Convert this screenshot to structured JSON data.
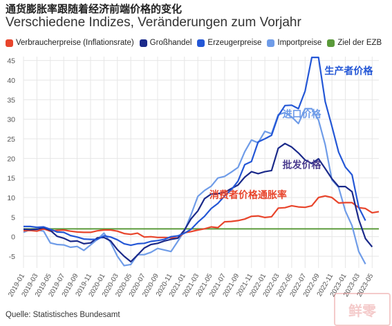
{
  "title": "通货膨胀率跟随着经济前端价格的变化",
  "subtitle": "Verschiedene Indizes, Veränderungen zum Vorjahr",
  "source": "Quelle: Statistisches Bundesamt",
  "watermark": "鲜零",
  "colors": {
    "cpi": "#e8452c",
    "grosshandel": "#1b2a8a",
    "erzeuger": "#2457d6",
    "import": "#6f9ce8",
    "ezb": "#5a9a3a",
    "grid": "#e6e6e6",
    "label_erzeuger": "#2457d6",
    "label_import": "#6f9ce8",
    "label_gross": "#4b3c8f",
    "label_cpi": "#e8452c"
  },
  "chart_data": {
    "type": "line",
    "ylim": [
      -8,
      46
    ],
    "yticks": [
      -5,
      0,
      5,
      10,
      15,
      20,
      25,
      30,
      35,
      40,
      45
    ],
    "x_start": "2019-01",
    "xtick_labels": [
      "2019-01",
      "2019-03",
      "2019-05",
      "2019-07",
      "2019-09",
      "2019-11",
      "2020-01",
      "2020-03",
      "2020-05",
      "2020-07",
      "2020-09",
      "2020-11",
      "2021-01",
      "2021-03",
      "2021-05",
      "2021-07",
      "2021-09",
      "2021-11",
      "2022-01",
      "2022-03",
      "2022-05",
      "2022-07",
      "2022-09",
      "2022-11",
      "2023-01",
      "2023-03",
      "2023-05"
    ],
    "series": [
      {
        "key": "cpi",
        "name": "Verbraucherpreise (Inflationsrate)",
        "end": "2023-06",
        "values": [
          1.5,
          1.6,
          1.4,
          2.0,
          1.4,
          1.6,
          1.7,
          1.4,
          1.2,
          1.1,
          1.1,
          1.5,
          1.7,
          1.7,
          1.4,
          0.8,
          0.6,
          0.9,
          -0.1,
          0.0,
          -0.2,
          -0.2,
          -0.3,
          -0.3,
          1.0,
          1.3,
          1.7,
          2.0,
          2.5,
          2.3,
          3.8,
          3.9,
          4.1,
          4.5,
          5.2,
          5.3,
          4.9,
          5.1,
          7.3,
          7.4,
          7.9,
          7.6,
          7.5,
          7.9,
          10.0,
          10.4,
          10.0,
          8.6,
          8.7,
          8.7,
          7.4,
          7.2,
          6.1,
          6.4
        ]
      },
      {
        "key": "grosshandel",
        "name": "Großhandel",
        "end": "2023-05",
        "values": [
          1.9,
          1.8,
          1.9,
          2.3,
          1.6,
          0.1,
          -0.4,
          -1.2,
          -1.1,
          -1.8,
          -1.6,
          -0.3,
          -0.2,
          -1.1,
          -3.3,
          -5.0,
          -6.4,
          -4.7,
          -2.9,
          -2.0,
          -1.7,
          -1.1,
          -0.7,
          -0.4,
          1.7,
          4.6,
          6.6,
          9.7,
          10.9,
          11.0,
          11.3,
          12.3,
          13.2,
          15.2,
          16.6,
          16.1,
          16.6,
          16.9,
          22.6,
          23.8,
          22.9,
          21.4,
          19.6,
          18.7,
          19.9,
          17.4,
          14.8,
          12.8,
          12.8,
          11.5,
          4.4,
          -0.5,
          -2.6
        ]
      },
      {
        "key": "erzeuger",
        "name": "Erzeugerpreise",
        "end": "2023-04",
        "values": [
          2.6,
          2.6,
          2.4,
          2.5,
          1.9,
          1.2,
          1.1,
          0.3,
          -0.1,
          -0.6,
          -0.7,
          -0.7,
          0.2,
          -0.1,
          -0.8,
          -1.8,
          -2.2,
          -1.8,
          -1.7,
          -1.2,
          -1.0,
          -0.7,
          0.0,
          0.2,
          0.9,
          1.9,
          3.7,
          5.2,
          7.2,
          8.5,
          10.4,
          12.0,
          14.2,
          18.4,
          19.2,
          24.2,
          25.0,
          25.9,
          30.9,
          33.5,
          33.6,
          32.7,
          37.2,
          45.8,
          45.8,
          34.5,
          28.2,
          21.6,
          17.8,
          15.8,
          7.5,
          4.1
        ]
      },
      {
        "key": "import",
        "name": "Importpreise",
        "end": "2023-04",
        "values": [
          1.1,
          1.8,
          1.7,
          1.4,
          -1.6,
          -2.0,
          -2.1,
          -2.7,
          -2.5,
          -3.5,
          -2.1,
          -0.7,
          0.9,
          -1.5,
          -5.0,
          -7.4,
          -7.1,
          -4.6,
          -4.6,
          -4.0,
          -3.0,
          -3.4,
          -3.8,
          -1.2,
          1.5,
          5.7,
          10.3,
          11.8,
          12.9,
          15.0,
          15.4,
          16.5,
          17.7,
          21.7,
          24.7,
          24.0,
          26.9,
          26.3,
          31.2,
          31.7,
          30.6,
          28.9,
          32.7,
          32.7,
          29.8,
          23.5,
          14.5,
          12.6,
          6.6,
          2.8,
          -3.8,
          -7.0
        ]
      },
      {
        "key": "ezb",
        "name": "Ziel der EZB",
        "end": "2023-06",
        "constant": 2.0
      }
    ],
    "annotations": [
      {
        "text": "生产者价格",
        "series": "erzeuger"
      },
      {
        "text": "进口价格",
        "series": "import"
      },
      {
        "text": "批发价格",
        "series": "grosshandel"
      },
      {
        "text": "消费者价格通胀率",
        "series": "cpi"
      }
    ],
    "grid": true,
    "legend": "top-left"
  }
}
